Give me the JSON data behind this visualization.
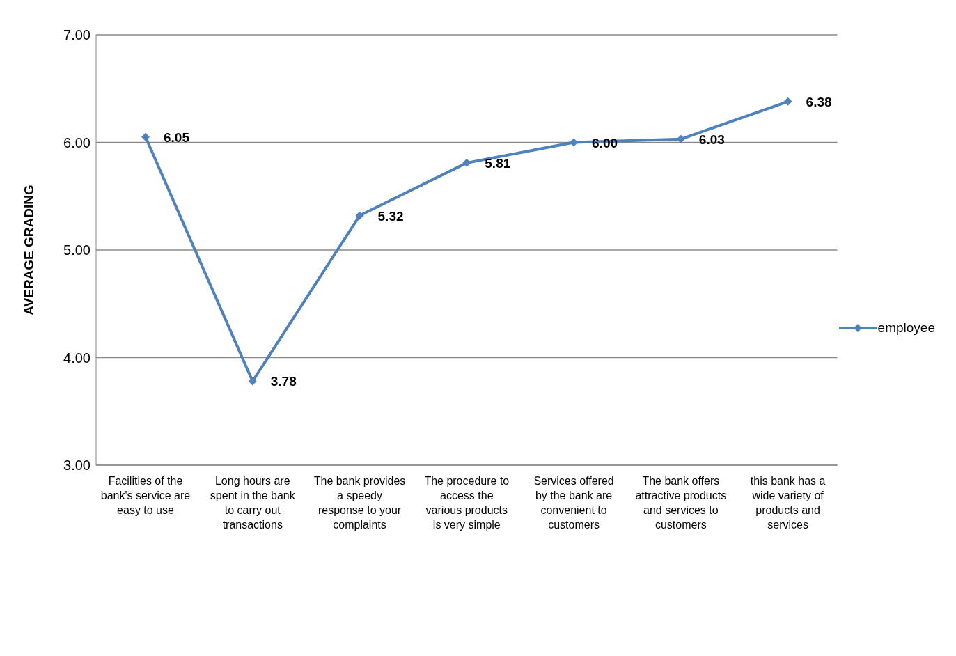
{
  "chart_data": {
    "type": "line",
    "ylabel": "AVERAGE GRADING",
    "categories": [
      "Facilities of the bank's service are easy to use",
      "Long hours are spent in the bank to carry out transactions",
      "The bank provides a speedy response to your complaints",
      "The procedure to access the various products is very simple",
      "Services offered by the bank are convenient to customers",
      "The bank offers attractive products and services to customers",
      "this bank has a wide variety of products and services"
    ],
    "series": [
      {
        "name": "employee",
        "color": "#4f81bd",
        "values": [
          6.05,
          3.78,
          5.32,
          5.81,
          6.0,
          6.03,
          6.38
        ],
        "value_labels": [
          "6.05",
          "3.78",
          "5.32",
          "5.81",
          "6.00",
          "6.03",
          "6.38"
        ]
      }
    ],
    "ylim": [
      3,
      7
    ],
    "yticks": [
      {
        "value": 3,
        "label": "3.00"
      },
      {
        "value": 4,
        "label": "4.00"
      },
      {
        "value": 5,
        "label": "5.00"
      },
      {
        "value": 6,
        "label": "6.00"
      },
      {
        "value": 7,
        "label": "7.00"
      }
    ],
    "grid": "y",
    "legend": "right",
    "marker": "diamond",
    "line_style": "solid"
  }
}
